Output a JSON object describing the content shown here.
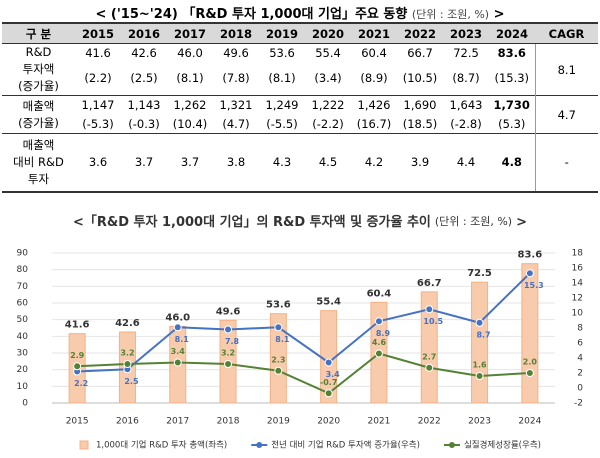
{
  "table": {
    "title": "< ('15~'24) 「R&D 투자 1,000대 기업」주요 동향",
    "unit": "(단위 : 조원, %)",
    "close": ">",
    "header": [
      "구 분",
      "2015",
      "2016",
      "2017",
      "2018",
      "2019",
      "2020",
      "2021",
      "2022",
      "2023",
      "2024",
      "CAGR"
    ],
    "groups": [
      {
        "label": [
          "R&D",
          "투자액",
          "(증가율)"
        ],
        "rows": [
          [
            "41.6",
            "42.6",
            "46.0",
            "49.6",
            "53.6",
            "55.4",
            "60.4",
            "66.7",
            "72.5",
            "83.6"
          ],
          [
            "(2.2)",
            "(2.5)",
            "(8.1)",
            "(7.8)",
            "(8.1)",
            "(3.4)",
            "(8.9)",
            "(10.5)",
            "(8.7)",
            "(15.3)"
          ]
        ],
        "cagr": "8.1"
      },
      {
        "label": [
          "매출액",
          "(증가율)"
        ],
        "rows": [
          [
            "1,147",
            "1,143",
            "1,262",
            "1,321",
            "1,249",
            "1,222",
            "1,426",
            "1,690",
            "1,643",
            "1,730"
          ],
          [
            "(-5.3)",
            "(-0.3)",
            "(10.4)",
            "(4.7)",
            "(-5.5)",
            "(-2.2)",
            "(16.7)",
            "(18.5)",
            "(-2.8)",
            "(5.3)"
          ]
        ],
        "cagr": "4.7"
      },
      {
        "label": [
          "매출액",
          "대비 R&D",
          "투자"
        ],
        "rows": [
          [
            "3.6",
            "3.7",
            "3.7",
            "3.8",
            "4.3",
            "4.5",
            "4.2",
            "3.9",
            "4.4",
            "4.8"
          ]
        ],
        "cagr": "-"
      }
    ]
  },
  "chart_data": {
    "type": "combo",
    "title": "<「R&D 투자 1,000대 기업」의 R&D 투자액 및 증가율 추이",
    "unit": "(단위 : 조원, %)",
    "close": ">",
    "categories": [
      "2015",
      "2016",
      "2017",
      "2018",
      "2019",
      "2020",
      "2021",
      "2022",
      "2023",
      "2024"
    ],
    "series": [
      {
        "name": "1,000대 기업 R&D 투자 총액(좌측)",
        "type": "bar",
        "color": "#f8cbad",
        "axis": "y",
        "values": [
          41.6,
          42.6,
          46,
          49.6,
          53.6,
          55.4,
          60.4,
          66.7,
          72.5,
          83.6
        ],
        "value_labels": [
          "41.6",
          "42.6",
          "46.0",
          "49.6",
          "53.6",
          "55.4",
          "60.4",
          "66.7",
          "72.5",
          "83.6"
        ]
      },
      {
        "name": "전년 대비 기업 R&D 투자액 증가율(우측)",
        "type": "line",
        "color": "#4472c4",
        "axis": "y2",
        "values": [
          2.2,
          2.5,
          8.1,
          7.8,
          8.1,
          3.4,
          8.9,
          10.5,
          8.7,
          15.3
        ]
      },
      {
        "name": "실질경제성장률(우측)",
        "type": "line",
        "color": "#548235",
        "axis": "y2",
        "values": [
          2.9,
          3.2,
          3.4,
          3.2,
          2.3,
          -0.7,
          4.6,
          2.7,
          1.6,
          2.0
        ],
        "value_labels": [
          "2.9",
          "3.2",
          "3.4",
          "3.2",
          "2.3",
          "-0.7",
          "4.6",
          "2.7",
          "1.6",
          "2.0"
        ]
      }
    ],
    "ylim": [
      0,
      90
    ],
    "yticks": [
      0,
      10,
      20,
      30,
      40,
      50,
      60,
      70,
      80,
      90
    ],
    "y2lim": [
      -2,
      18
    ],
    "y2ticks": [
      -2,
      0,
      2,
      4,
      6,
      8,
      10,
      12,
      14,
      16,
      18
    ],
    "grid": true
  }
}
